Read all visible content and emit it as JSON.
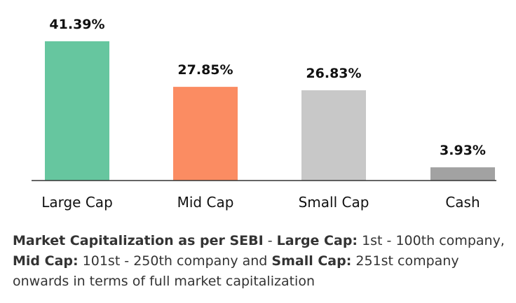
{
  "chart_data": {
    "type": "bar",
    "categories": [
      "Large Cap",
      "Mid Cap",
      "Small Cap",
      "Cash"
    ],
    "values": [
      41.39,
      27.85,
      26.83,
      3.93
    ],
    "value_labels": [
      "41.39%",
      "27.85%",
      "26.83%",
      "3.93%"
    ],
    "colors": [
      "#66c69f",
      "#fb8c62",
      "#c8c8c8",
      "#a2a2a2"
    ],
    "ylim": [
      0,
      41.39
    ],
    "grid": false,
    "legend": "none"
  },
  "footnote": {
    "p1": "Market Capitalization as per SEBI",
    "p2": " - ",
    "p3": "Large Cap:",
    "p4": " 1st - 100th company, ",
    "p5": "Mid Cap:",
    "p6": " 101st - 250th company and ",
    "p7": "Small Cap:",
    "p8": " 251st company onwards in terms of full market capitalization"
  }
}
